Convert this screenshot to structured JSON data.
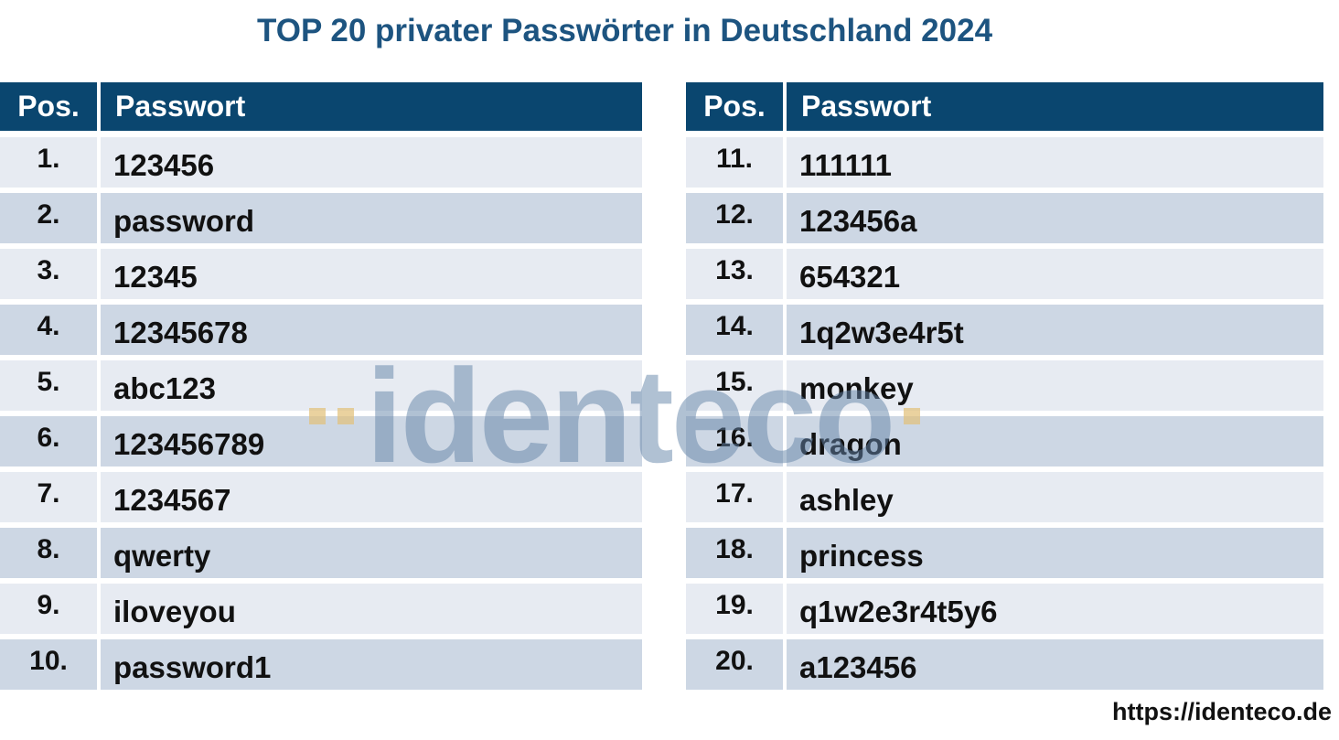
{
  "title": "TOP 20 privater Passwörter in Deutschland 2024",
  "tables": [
    {
      "headers": [
        "Pos.",
        "Passwort"
      ],
      "rows": [
        {
          "pos": "1.",
          "password": "123456"
        },
        {
          "pos": "2.",
          "password": "password"
        },
        {
          "pos": "3.",
          "password": "12345"
        },
        {
          "pos": "4.",
          "password": "12345678"
        },
        {
          "pos": "5.",
          "password": "abc123"
        },
        {
          "pos": "6.",
          "password": "123456789"
        },
        {
          "pos": "7.",
          "password": "1234567"
        },
        {
          "pos": "8.",
          "password": "qwerty"
        },
        {
          "pos": "9.",
          "password": "iloveyou"
        },
        {
          "pos": "10.",
          "password": "password1"
        }
      ]
    },
    {
      "headers": [
        "Pos.",
        "Passwort"
      ],
      "rows": [
        {
          "pos": "11.",
          "password": "111111"
        },
        {
          "pos": "12.",
          "password": "123456a"
        },
        {
          "pos": "13.",
          "password": "654321"
        },
        {
          "pos": "14.",
          "password": "1q2w3e4r5t"
        },
        {
          "pos": "15.",
          "password": "monkey"
        },
        {
          "pos": "16.",
          "password": "dragon"
        },
        {
          "pos": "17.",
          "password": "ashley"
        },
        {
          "pos": "18.",
          "password": "princess"
        },
        {
          "pos": "19.",
          "password": "q1w2e3r4t5y6"
        },
        {
          "pos": "20.",
          "password": "a123456"
        }
      ]
    }
  ],
  "watermark": {
    "text": "identeco"
  },
  "footer": {
    "url": "https://identeco.de"
  },
  "colors": {
    "header_bg": "#0a466f",
    "title": "#1d5480",
    "row_light": "#e7ebf2",
    "row_dark": "#cdd7e4",
    "text": "#111111",
    "watermark_blue": "#6484a8",
    "watermark_tan": "#e2c07a"
  },
  "chart_data": {
    "type": "table",
    "title": "TOP 20 privater Passwörter in Deutschland 2024",
    "columns": [
      "Pos.",
      "Passwort"
    ],
    "rows": [
      [
        "1.",
        "123456"
      ],
      [
        "2.",
        "password"
      ],
      [
        "3.",
        "12345"
      ],
      [
        "4.",
        "12345678"
      ],
      [
        "5.",
        "abc123"
      ],
      [
        "6.",
        "123456789"
      ],
      [
        "7.",
        "1234567"
      ],
      [
        "8.",
        "qwerty"
      ],
      [
        "9.",
        "iloveyou"
      ],
      [
        "10.",
        "password1"
      ],
      [
        "11.",
        "111111"
      ],
      [
        "12.",
        "123456a"
      ],
      [
        "13.",
        "654321"
      ],
      [
        "14.",
        "1q2w3e4r5t"
      ],
      [
        "15.",
        "monkey"
      ],
      [
        "16.",
        "dragon"
      ],
      [
        "17.",
        "ashley"
      ],
      [
        "18.",
        "princess"
      ],
      [
        "19.",
        "q1w2e3r4t5y6"
      ],
      [
        "20.",
        "a123456"
      ]
    ],
    "layout": "two side-by-side tables, ranks 1-10 left and 11-20 right"
  }
}
